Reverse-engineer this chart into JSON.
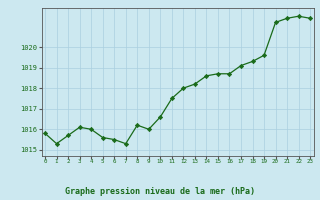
{
  "x": [
    0,
    1,
    2,
    3,
    4,
    5,
    6,
    7,
    8,
    9,
    10,
    11,
    12,
    13,
    14,
    15,
    16,
    17,
    18,
    19,
    20,
    21,
    22,
    23
  ],
  "y": [
    1015.8,
    1015.3,
    1015.7,
    1016.1,
    1016.0,
    1015.6,
    1015.5,
    1015.3,
    1016.2,
    1016.0,
    1016.6,
    1017.5,
    1018.0,
    1018.2,
    1018.6,
    1018.7,
    1018.7,
    1019.1,
    1019.3,
    1019.6,
    1021.2,
    1021.4,
    1021.5,
    1021.4
  ],
  "line_color": "#1a6b1a",
  "marker_color": "#1a6b1a",
  "bg_color": "#cce8f0",
  "plot_bg_color": "#cce8f0",
  "grid_color": "#aacfdf",
  "border_color": "#555555",
  "xlabel": "Graphe pression niveau de la mer (hPa)",
  "xlabel_color": "#1a6b1a",
  "xlabel_bg": "#b8dce8",
  "tick_color": "#1a6b1a",
  "ylabel_ticks": [
    1015,
    1016,
    1017,
    1018,
    1019,
    1020
  ],
  "ylim": [
    1014.7,
    1021.9
  ],
  "xlim": [
    -0.3,
    23.3
  ]
}
